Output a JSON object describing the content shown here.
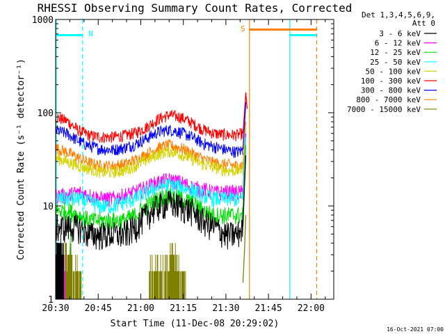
{
  "chart_data": {
    "type": "line",
    "title": "RHESSI Observing Summary Count Rates, Corrected",
    "xlabel": "Start Time (11-Dec-08 20:29:02)",
    "ylabel": "Corrected Count Rate (s⁻¹ detector⁻¹)",
    "y_scale": "log",
    "ylim": [
      1,
      1000
    ],
    "xlim_minutes_after_2030": [
      0,
      98
    ],
    "x_ticks": [
      "20:30",
      "20:45",
      "21:00",
      "21:15",
      "21:30",
      "21:45",
      "22:00"
    ],
    "y_ticks": [
      "1",
      "10",
      "100",
      "1000"
    ],
    "detectors_label": "Det 1,3,4,5,6,9,",
    "attenuator_label": "Att 0",
    "night_label": "N",
    "saa_label": "S",
    "timestamp": "16-Oct-2021 07:00",
    "bands": [
      {
        "name": "3 - 6 keV",
        "color": "#000000"
      },
      {
        "name": "6 - 12 keV",
        "color": "#ff00ff"
      },
      {
        "name": "12 - 25 keV",
        "color": "#00dd00"
      },
      {
        "name": "25 - 50 keV",
        "color": "#00ffff"
      },
      {
        "name": "50 - 100 keV",
        "color": "#d4d400"
      },
      {
        "name": "100 - 300 keV",
        "color": "#ff0000"
      },
      {
        "name": "300 - 800 keV",
        "color": "#0000ff"
      },
      {
        "name": "800 - 7000 keV",
        "color": "#ff8000"
      },
      {
        "name": "7000 - 15000 keV",
        "color": "#7f7f00"
      }
    ],
    "series": [
      {
        "band": 5,
        "x": [
          0,
          4,
          8,
          12,
          16,
          20,
          24,
          28,
          32,
          36,
          40,
          44,
          48,
          52,
          56,
          60,
          64,
          66
        ],
        "values": [
          90,
          82,
          65,
          57,
          55,
          55,
          57,
          61,
          70,
          85,
          95,
          90,
          78,
          66,
          60,
          58,
          58,
          60
        ],
        "noise": 0.06
      },
      {
        "band": 6,
        "x": [
          0,
          4,
          8,
          12,
          16,
          20,
          24,
          28,
          32,
          36,
          40,
          44,
          48,
          52,
          56,
          60,
          64,
          66
        ],
        "values": [
          65,
          60,
          50,
          44,
          41,
          40,
          42,
          46,
          53,
          62,
          66,
          62,
          55,
          47,
          43,
          40,
          38,
          40
        ],
        "noise": 0.06
      },
      {
        "band": 7,
        "x": [
          0,
          4,
          8,
          12,
          16,
          20,
          24,
          28,
          32,
          36,
          40,
          44,
          48,
          52,
          56,
          60,
          64,
          66
        ],
        "values": [
          42,
          38,
          33,
          29,
          27,
          27,
          28,
          31,
          36,
          42,
          45,
          42,
          37,
          32,
          29,
          28,
          27,
          28
        ],
        "noise": 0.06
      },
      {
        "band": 4,
        "x": [
          0,
          4,
          8,
          12,
          16,
          20,
          24,
          28,
          32,
          36,
          40,
          44,
          48,
          52,
          56,
          60,
          64,
          66
        ],
        "values": [
          33,
          30,
          27,
          25,
          23,
          23,
          24,
          27,
          31,
          36,
          39,
          36,
          32,
          28,
          26,
          24,
          24,
          25
        ],
        "noise": 0.06
      },
      {
        "band": 1,
        "x": [
          0,
          4,
          8,
          12,
          16,
          20,
          24,
          28,
          32,
          36,
          40,
          44,
          48,
          52,
          56,
          60,
          64,
          66
        ],
        "values": [
          13,
          13,
          14,
          13,
          12,
          12,
          13,
          14,
          16,
          18,
          19,
          18,
          16,
          15,
          14,
          14,
          14,
          14
        ],
        "noise": 0.08
      },
      {
        "band": 3,
        "x": [
          0,
          4,
          8,
          12,
          16,
          20,
          24,
          28,
          32,
          36,
          40,
          44,
          48,
          52,
          56,
          60,
          64,
          66
        ],
        "values": [
          12,
          12,
          12,
          11,
          10,
          10,
          11,
          12,
          14,
          16,
          17,
          16,
          15,
          13,
          12,
          12,
          12,
          12
        ],
        "noise": 0.08
      },
      {
        "band": 2,
        "x": [
          0,
          4,
          8,
          12,
          16,
          20,
          24,
          28,
          32,
          36,
          40,
          44,
          48,
          52,
          56,
          60,
          64,
          66
        ],
        "values": [
          9,
          9,
          8,
          7,
          7,
          7,
          7,
          8,
          10,
          12,
          13,
          12,
          11,
          9,
          8,
          8,
          8,
          8
        ],
        "noise": 0.09
      },
      {
        "band": 0,
        "x": [
          0,
          4,
          8,
          12,
          16,
          20,
          24,
          28,
          32,
          36,
          40,
          44,
          48,
          52,
          56,
          60,
          64,
          66
        ],
        "values": [
          6,
          6,
          6,
          5,
          5,
          5,
          5,
          6,
          8,
          10,
          11,
          10,
          9,
          7,
          6,
          5,
          5,
          6
        ],
        "noise": 0.14
      }
    ],
    "spikes": [
      {
        "band": 5,
        "x": [
          66,
          66.5,
          67,
          67.5
        ],
        "values": [
          60,
          95,
          165,
          110
        ]
      },
      {
        "band": 6,
        "x": [
          66,
          66.5,
          67
        ],
        "values": [
          40,
          70,
          130
        ]
      },
      {
        "band": 7,
        "x": [
          66,
          66.5,
          67
        ],
        "values": [
          28,
          45,
          80
        ]
      },
      {
        "band": 4,
        "x": [
          66,
          66.5,
          67
        ],
        "values": [
          25,
          40,
          70
        ]
      },
      {
        "band": 1,
        "x": [
          66,
          66.5,
          67
        ],
        "values": [
          14,
          30,
          60
        ]
      },
      {
        "band": 3,
        "x": [
          66,
          66.5,
          67
        ],
        "values": [
          12,
          25,
          55
        ]
      },
      {
        "band": 2,
        "x": [
          66,
          66.5,
          67
        ],
        "values": [
          8,
          20,
          45
        ]
      },
      {
        "band": 0,
        "x": [
          66,
          66.5,
          67
        ],
        "values": [
          6,
          15,
          35
        ]
      },
      {
        "band": 8,
        "x": [
          66,
          66.5,
          67
        ],
        "values": [
          1.5,
          3,
          8
        ]
      }
    ],
    "low_band_segments": [
      {
        "band": 8,
        "x_start": 0,
        "x_end": 6,
        "level": 3
      },
      {
        "band": 1,
        "x_start": 0,
        "x_end": 3.5,
        "level": 2
      },
      {
        "band": 0,
        "x_start": 0,
        "x_end": 3,
        "level": 4
      },
      {
        "band": 8,
        "x_start": 6,
        "x_end": 9,
        "level": 2
      },
      {
        "band": 8,
        "x_start": 33,
        "x_end": 46,
        "level": 2
      },
      {
        "band": 8,
        "x_start": 40,
        "x_end": 43,
        "level": 3
      }
    ],
    "early_rise": [
      {
        "band": 2,
        "x": [
          5,
          5.5,
          6
        ],
        "values": [
          3,
          8,
          11
        ]
      }
    ],
    "vertical_markers": [
      {
        "kind": "dashed",
        "x": 9.5,
        "color": "#00ffff"
      },
      {
        "kind": "solid",
        "x": 68.3,
        "color": "#ff8000"
      },
      {
        "kind": "solid",
        "x": 82.5,
        "color": "#00ffff"
      },
      {
        "kind": "dashed",
        "x": 92.0,
        "color": "#ff8000"
      }
    ],
    "flag_bars": [
      {
        "label": "N",
        "x_start": 0,
        "x_end": 9.5,
        "level": 680,
        "color": "#00ffff"
      },
      {
        "label": "S",
        "x_start": 68.3,
        "x_end": 92.0,
        "level": 780,
        "color": "#ff8000"
      },
      {
        "label": "",
        "x_start": 82.5,
        "x_end": 92.0,
        "level": 680,
        "color": "#00ffff"
      }
    ]
  }
}
